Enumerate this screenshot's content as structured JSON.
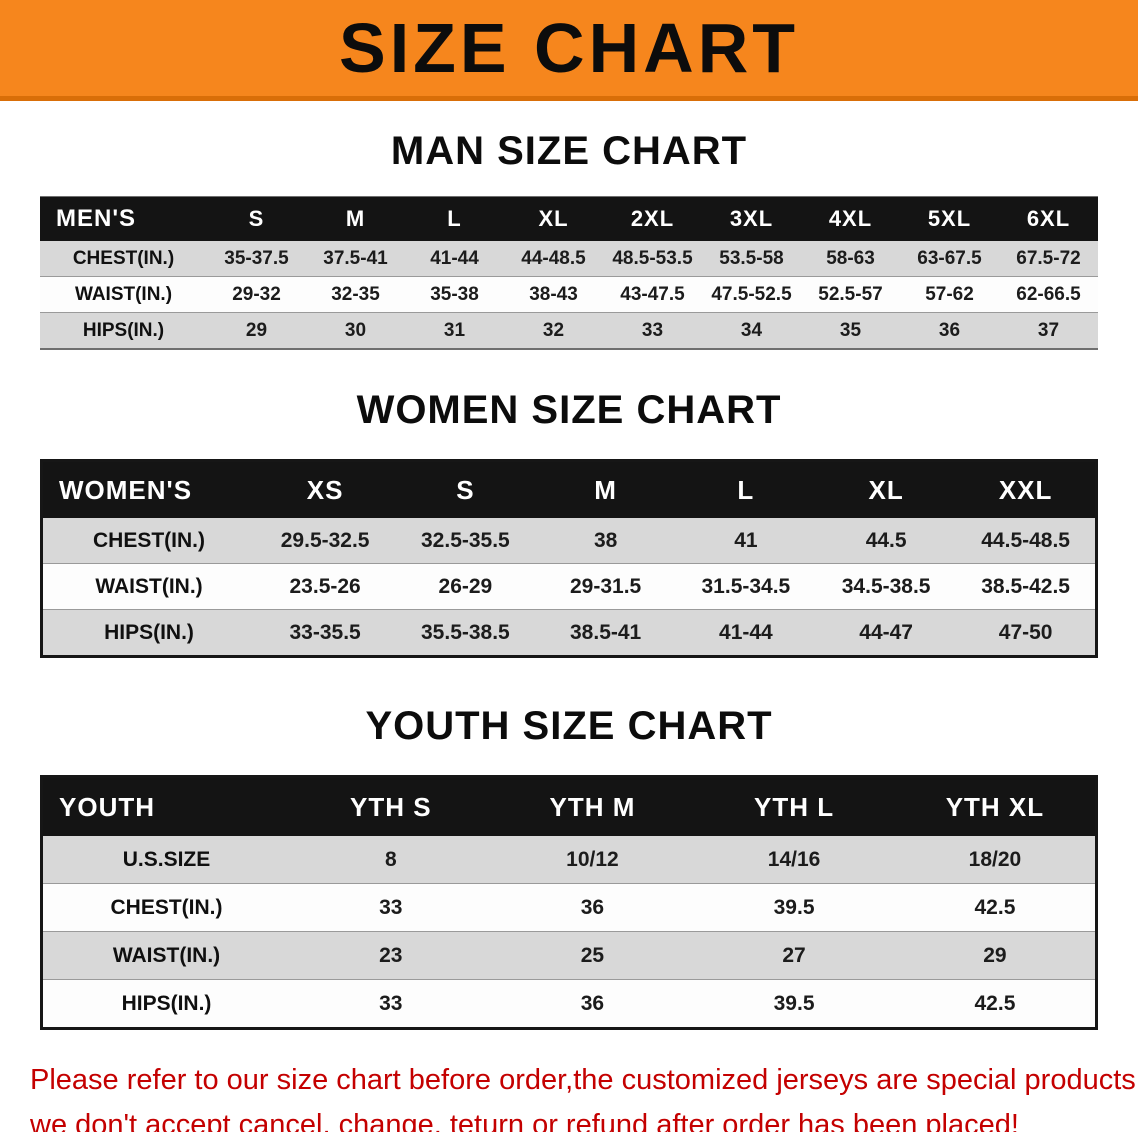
{
  "banner": {
    "title": "SIZE CHART"
  },
  "colors": {
    "banner_orange": "#f6861d",
    "banner_edge": "#d96e08",
    "header_black": "#141414",
    "shade_gray": "#d8d8d8",
    "footer_red": "#c40000"
  },
  "sections": [
    {
      "heading": "MAN SIZE CHART",
      "table": {
        "header": [
          "MEN'S",
          "S",
          "M",
          "L",
          "XL",
          "2XL",
          "3XL",
          "4XL",
          "5XL",
          "6XL"
        ],
        "rows": [
          {
            "label": "CHEST(IN.)",
            "shade": true,
            "values": [
              "35-37.5",
              "37.5-41",
              "41-44",
              "44-48.5",
              "48.5-53.5",
              "53.5-58",
              "58-63",
              "63-67.5",
              "67.5-72"
            ]
          },
          {
            "label": "WAIST(IN.)",
            "shade": false,
            "values": [
              "29-32",
              "32-35",
              "35-38",
              "38-43",
              "43-47.5",
              "47.5-52.5",
              "52.5-57",
              "57-62",
              "62-66.5"
            ]
          },
          {
            "label": "HIPS(IN.)",
            "shade": true,
            "values": [
              "29",
              "30",
              "31",
              "32",
              "33",
              "34",
              "35",
              "36",
              "37"
            ]
          }
        ]
      }
    },
    {
      "heading": "WOMEN SIZE CHART",
      "table": {
        "header": [
          "WOMEN'S",
          "XS",
          "S",
          "M",
          "L",
          "XL",
          "XXL"
        ],
        "rows": [
          {
            "label": "CHEST(IN.)",
            "shade": true,
            "values": [
              "29.5-32.5",
              "32.5-35.5",
              "38",
              "41",
              "44.5",
              "44.5-48.5"
            ]
          },
          {
            "label": "WAIST(IN.)",
            "shade": false,
            "values": [
              "23.5-26",
              "26-29",
              "29-31.5",
              "31.5-34.5",
              "34.5-38.5",
              "38.5-42.5"
            ]
          },
          {
            "label": "HIPS(IN.)",
            "shade": true,
            "values": [
              "33-35.5",
              "35.5-38.5",
              "38.5-41",
              "41-44",
              "44-47",
              "47-50"
            ]
          }
        ]
      }
    },
    {
      "heading": "YOUTH SIZE CHART",
      "table": {
        "header": [
          "YOUTH",
          "YTH S",
          "YTH M",
          "YTH L",
          "YTH XL"
        ],
        "rows": [
          {
            "label": "U.S.SIZE",
            "shade": true,
            "values": [
              "8",
              "10/12",
              "14/16",
              "18/20"
            ]
          },
          {
            "label": "CHEST(IN.)",
            "shade": false,
            "values": [
              "33",
              "36",
              "39.5",
              "42.5"
            ]
          },
          {
            "label": "WAIST(IN.)",
            "shade": true,
            "values": [
              "23",
              "25",
              "27",
              "29"
            ]
          },
          {
            "label": "HIPS(IN.)",
            "shade": false,
            "values": [
              "33",
              "36",
              "39.5",
              "42.5"
            ]
          }
        ]
      }
    }
  ],
  "footer": {
    "line1": "Please refer to our size chart before order,the customized jerseys are special products,",
    "line2": "we don't accept cancel, change, teturn or refund after order has been placed!"
  }
}
